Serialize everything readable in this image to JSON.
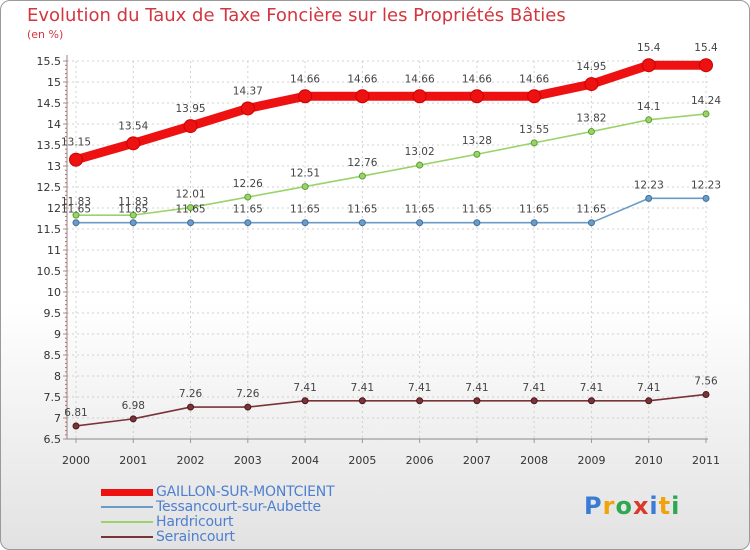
{
  "title": "Evolution du Taux de Taxe Foncière sur les Propriétés Bâties",
  "subtitle": "(en %)",
  "logo": {
    "letters": [
      "P",
      "r",
      "o",
      "x",
      "i",
      "t",
      "i"
    ],
    "colors": [
      "#3a7bd5",
      "#f0a30a",
      "#2ea84f",
      "#d93a2a",
      "#3a7bd5",
      "#f0a30a",
      "#2ea84f"
    ]
  },
  "chart_data": {
    "type": "line",
    "title": "Evolution du Taux de Taxe Foncière sur les Propriétés Bâties",
    "ylabel": "(en %)",
    "xlabel": "",
    "x": [
      "2000",
      "2001",
      "2002",
      "2003",
      "2004",
      "2005",
      "2006",
      "2007",
      "2008",
      "2009",
      "2010",
      "2011"
    ],
    "ylim": [
      6.5,
      15.5
    ],
    "yticks": [
      "6.5",
      "7",
      "7.5",
      "8",
      "8.5",
      "9",
      "9.5",
      "10",
      "10.5",
      "11",
      "11.5",
      "12",
      "12.5",
      "13",
      "13.5",
      "14",
      "14.5",
      "15",
      "15.5"
    ],
    "legend_position": "bottom-left",
    "series": [
      {
        "name": "GAILLON-SUR-MONTCIENT",
        "color": "#ee1111",
        "values": [
          13.15,
          13.54,
          13.95,
          14.37,
          14.66,
          14.66,
          14.66,
          14.66,
          14.66,
          14.95,
          15.4,
          15.4
        ],
        "labels": [
          "13.15",
          "13.54",
          "13.95",
          "14.37",
          "14.66",
          "14.66",
          "14.66",
          "14.66",
          "14.66",
          "14.95",
          "15.4",
          "15.4"
        ]
      },
      {
        "name": "Tessancourt-sur-Aubette",
        "color": "#6b9cc8",
        "values": [
          11.65,
          11.65,
          11.65,
          11.65,
          11.65,
          11.65,
          11.65,
          11.65,
          11.65,
          11.65,
          12.23,
          12.23
        ],
        "labels": [
          "11.65",
          "11.65",
          "11.65",
          "11.65",
          "11.65",
          "11.65",
          "11.65",
          "11.65",
          "11.65",
          "11.65",
          "12.23",
          "12.23"
        ]
      },
      {
        "name": "Hardricourt",
        "color": "#9bd36b",
        "values": [
          11.83,
          11.83,
          12.01,
          12.26,
          12.51,
          12.76,
          13.02,
          13.28,
          13.55,
          13.82,
          14.1,
          14.24
        ],
        "labels": [
          "11.83",
          "11.83",
          "12.01",
          "12.26",
          "12.51",
          "12.76",
          "13.02",
          "13.28",
          "13.55",
          "13.82",
          "14.1",
          "14.24"
        ]
      },
      {
        "name": "Seraincourt",
        "color": "#7a3438",
        "values": [
          6.81,
          6.98,
          7.26,
          7.26,
          7.41,
          7.41,
          7.41,
          7.41,
          7.41,
          7.41,
          7.41,
          7.56
        ],
        "labels": [
          "6.81",
          "6.98",
          "7.26",
          "7.26",
          "7.41",
          "7.41",
          "7.41",
          "7.41",
          "7.41",
          "7.41",
          "7.41",
          "7.56"
        ]
      }
    ]
  }
}
